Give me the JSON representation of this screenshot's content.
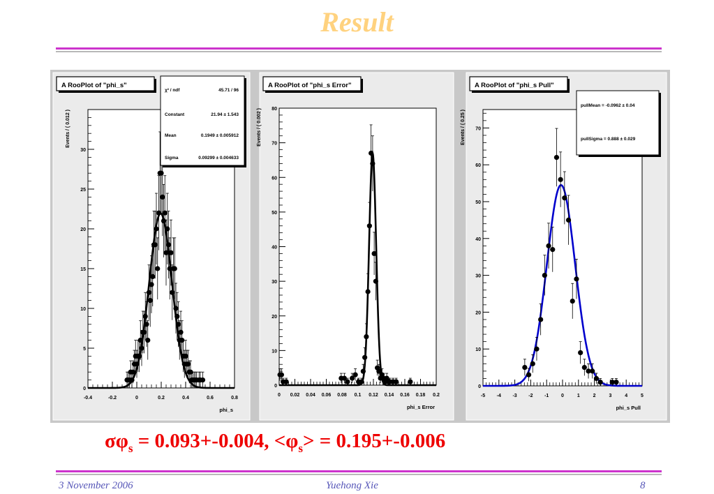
{
  "slide": {
    "title": "Result",
    "result_text": {
      "sigma": "σφ",
      "s1": "s",
      "mid": " = 0.093+-0.004, <φ",
      "s2": "s",
      "tail": "> = 0.195+-0.006"
    },
    "footer": {
      "date": "3 November 2006",
      "author": "Yuehong Xie",
      "page": "8"
    },
    "colors": {
      "title": "#ffd27f",
      "rule": "#cc33cc",
      "result": "#ee0000",
      "footer": "#5656b8",
      "pull_fit": "#0000cc"
    }
  },
  "chart_data": [
    {
      "type": "scatter",
      "title": "A RooPlot of \"phi_s\"",
      "xlabel": "phi_s",
      "ylabel": "Events / ( 0.012 )",
      "xlim": [
        -0.4,
        0.8
      ],
      "ylim": [
        0,
        35
      ],
      "xticks": [
        -0.4,
        -0.2,
        0,
        0.2,
        0.4,
        0.6,
        0.8
      ],
      "xticklabels": [
        "-0.4",
        "-0.2",
        "0",
        "0.2",
        "0.4",
        "0.6",
        "0.8"
      ],
      "yticks": [
        0,
        5,
        10,
        15,
        20,
        25,
        30
      ],
      "yticklabels": [
        "0",
        "5",
        "10",
        "15",
        "20",
        "25",
        "30"
      ],
      "stats": [
        {
          "label": "χ² / ndf",
          "value": "45.71 / 96"
        },
        {
          "label": "Constant",
          "value": "21.94 ± 1.543"
        },
        {
          "label": "Mean",
          "value": "0.1949 ± 0.005912"
        },
        {
          "label": "Sigma",
          "value": "0.09299 ± 0.004633"
        }
      ],
      "fit": {
        "kind": "gaussian",
        "constant": 21.94,
        "mean": 0.1949,
        "sigma": 0.09299,
        "color": "#000000"
      },
      "x": [
        -0.08,
        -0.07,
        -0.06,
        -0.05,
        -0.04,
        -0.03,
        -0.02,
        -0.01,
        0.0,
        0.01,
        0.02,
        0.03,
        0.04,
        0.05,
        0.06,
        0.07,
        0.08,
        0.09,
        0.1,
        0.11,
        0.12,
        0.13,
        0.14,
        0.15,
        0.16,
        0.17,
        0.18,
        0.19,
        0.2,
        0.21,
        0.22,
        0.23,
        0.24,
        0.25,
        0.26,
        0.27,
        0.28,
        0.29,
        0.3,
        0.31,
        0.32,
        0.33,
        0.34,
        0.35,
        0.36,
        0.37,
        0.38,
        0.39,
        0.4,
        0.41,
        0.42,
        0.43,
        0.44,
        0.45,
        0.46,
        0.47,
        0.48,
        0.49,
        0.5,
        0.51,
        0.52,
        0.53,
        0.54
      ],
      "y": [
        1,
        1,
        1,
        2,
        1,
        2,
        3,
        4,
        3,
        4,
        4,
        6,
        5,
        7,
        7,
        9,
        8,
        6,
        12,
        11,
        13,
        14,
        18,
        18,
        20,
        15,
        22,
        27,
        27,
        24,
        21,
        22,
        17,
        20,
        18,
        15,
        17,
        12,
        15,
        15,
        10,
        9,
        8,
        6,
        7,
        6,
        4,
        3,
        4,
        3,
        3,
        2,
        2,
        1,
        1,
        1,
        1,
        1,
        0,
        1,
        1,
        0,
        1
      ]
    },
    {
      "type": "scatter",
      "title": "A RooPlot of \"phi_s Error\"",
      "xlabel": "phi_s Error",
      "ylabel": "Events / ( 0.002 )",
      "xlim": [
        0,
        0.2
      ],
      "ylim": [
        0,
        80
      ],
      "xticks": [
        0,
        0.02,
        0.04,
        0.06,
        0.08,
        0.1,
        0.12,
        0.14,
        0.16,
        0.18,
        0.2
      ],
      "xticklabels": [
        "0",
        "0.02",
        "0.04",
        "0.06",
        "0.08",
        "0.1",
        "0.12",
        "0.14",
        "0.16",
        "0.18",
        "0.2"
      ],
      "yticks": [
        0,
        10,
        20,
        30,
        40,
        50,
        60,
        70,
        80
      ],
      "yticklabels": [
        "0",
        "10",
        "20",
        "30",
        "40",
        "50",
        "60",
        "70",
        "80"
      ],
      "fit": {
        "kind": "gaussian",
        "constant": 67,
        "mean": 0.119,
        "sigma": 0.0045,
        "color": "#000000"
      },
      "x": [
        0.001,
        0.003,
        0.005,
        0.009,
        0.079,
        0.083,
        0.087,
        0.093,
        0.097,
        0.101,
        0.105,
        0.107,
        0.109,
        0.111,
        0.113,
        0.115,
        0.117,
        0.119,
        0.121,
        0.123,
        0.125,
        0.127,
        0.129,
        0.131,
        0.133,
        0.135,
        0.137,
        0.139,
        0.141,
        0.145,
        0.149,
        0.167
      ],
      "y": [
        3,
        3,
        1,
        1,
        2,
        2,
        1,
        2,
        3,
        1,
        1,
        4,
        8,
        14,
        27,
        46,
        67,
        64,
        38,
        30,
        5,
        4,
        2,
        3,
        2,
        1,
        2,
        1,
        1,
        1,
        1,
        1
      ]
    },
    {
      "type": "scatter",
      "title": "A RooPlot of \"phi_s Pull\"",
      "xlabel": "phi_s Pull",
      "ylabel": "Events / ( 0.25 )",
      "xlim": [
        -5,
        5
      ],
      "ylim": [
        0,
        75
      ],
      "xticks": [
        -5,
        -4,
        -3,
        -2,
        -1,
        0,
        1,
        2,
        3,
        4,
        5
      ],
      "xticklabels": [
        "-5",
        "-4",
        "-3",
        "-2",
        "-1",
        "0",
        "1",
        "2",
        "3",
        "4",
        "5"
      ],
      "yticks": [
        0,
        10,
        20,
        30,
        40,
        50,
        60,
        70
      ],
      "yticklabels": [
        "0",
        "10",
        "20",
        "30",
        "40",
        "50",
        "60",
        "70"
      ],
      "stats": [
        {
          "label": "pullMean =",
          "value": "-0.0962 ± 0.04"
        },
        {
          "label": "pullSigma =",
          "value": "0.888 ± 0.029"
        }
      ],
      "fit": {
        "kind": "gaussian",
        "constant": 54.5,
        "mean": -0.0962,
        "sigma": 0.888,
        "color": "#0000cc"
      },
      "x": [
        -2.375,
        -2.125,
        -1.875,
        -1.625,
        -1.375,
        -1.125,
        -0.875,
        -0.625,
        -0.375,
        -0.125,
        0.125,
        0.375,
        0.625,
        0.875,
        1.125,
        1.375,
        1.625,
        1.875,
        2.125,
        2.375,
        3.125,
        3.375
      ],
      "y": [
        5,
        3,
        6,
        10,
        18,
        30,
        38,
        37,
        62,
        56,
        51,
        45,
        23,
        29,
        9,
        5,
        4,
        4,
        2,
        1,
        1,
        1
      ]
    }
  ]
}
